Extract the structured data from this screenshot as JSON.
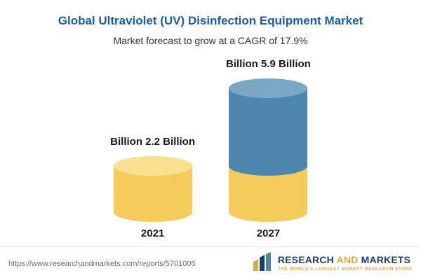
{
  "header": {
    "title": "Global Ultraviolet (UV) Disinfection Equipment Market",
    "subtitle": "Market forecast to grow at a CAGR of 17.9%"
  },
  "chart_data": {
    "type": "bar",
    "style": "3d-cylinder",
    "title": "Global Ultraviolet (UV) Disinfection Equipment Market",
    "subtitle": "Market forecast to grow at a CAGR of 17.9%",
    "categories": [
      "2021",
      "2027"
    ],
    "values": [
      2.2,
      5.9
    ],
    "unit": "Billion",
    "cagr": "17.9%",
    "xlabel": "",
    "ylabel": "",
    "ylim": [
      0,
      6.5
    ],
    "grid": false,
    "legend": false,
    "bars": [
      {
        "category": "2021",
        "value": 2.2,
        "label": "Billion 2.2 Billion",
        "body_color": "#F5CB5C",
        "top_color": "#FAE192"
      },
      {
        "category": "2027",
        "value": 5.9,
        "label": "Billion 5.9 Billion",
        "body_color": "#4E87AE",
        "top_color": "#7BA8C4",
        "base_segment": {
          "value": 2.2,
          "color": "#F5CB5C"
        }
      }
    ]
  },
  "footer": {
    "url": "https://www.researchandmarkets.com/reports/5701005",
    "logo": {
      "part1": "RESEARCH",
      "part2": "AND",
      "part3": "MARKETS",
      "tagline": "THE WORLD'S LARGEST MARKET RESEARCH STORE"
    }
  },
  "colors": {
    "title_blue": "#1d5ca5",
    "bar_yellow": "#F5CB5C",
    "bar_blue": "#4E87AE",
    "logo_navy": "#1b3e6f",
    "logo_gold": "#e2a93b"
  }
}
